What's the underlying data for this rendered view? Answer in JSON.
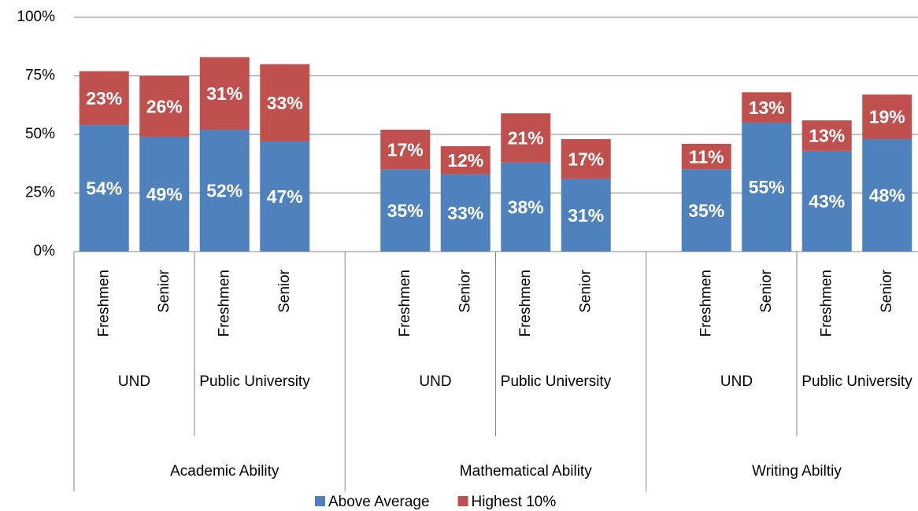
{
  "chart_data": {
    "type": "bar",
    "stacked": true,
    "groups": [
      {
        "name": "Academic Ability",
        "subgroups": [
          {
            "name": "UND",
            "categories": [
              "Freshmen",
              "Senior"
            ]
          },
          {
            "name": "Public University",
            "categories": [
              "Freshmen",
              "Senior"
            ]
          }
        ]
      },
      {
        "name": "Mathematical Ability",
        "subgroups": [
          {
            "name": "UND",
            "categories": [
              "Freshmen",
              "Senior"
            ]
          },
          {
            "name": "Public University",
            "categories": [
              "Freshmen",
              "Senior"
            ]
          }
        ]
      },
      {
        "name": "Writing Abiltiy",
        "subgroups": [
          {
            "name": "UND",
            "categories": [
              "Freshmen",
              "Senior"
            ]
          },
          {
            "name": "Public University",
            "categories": [
              "Freshmen",
              "Senior"
            ]
          }
        ]
      }
    ],
    "series": [
      {
        "name": "Above Average",
        "color": "#4f81bd",
        "values": [
          54,
          49,
          52,
          47,
          35,
          33,
          38,
          31,
          35,
          55,
          43,
          48
        ],
        "value_labels": [
          "54%",
          "49%",
          "52%",
          "47%",
          "35%",
          "33%",
          "38%",
          "31%",
          "35%",
          "55%",
          "43%",
          "48%"
        ]
      },
      {
        "name": "Highest 10%",
        "color": "#c0504d",
        "values": [
          23,
          26,
          31,
          33,
          17,
          12,
          21,
          17,
          11,
          13,
          13,
          19
        ],
        "value_labels": [
          "23%",
          "26%",
          "31%",
          "33%",
          "17%",
          "12%",
          "21%",
          "17%",
          "11%",
          "13%",
          "13%",
          "19%"
        ]
      }
    ],
    "ylim": [
      0,
      100
    ],
    "yticks": [
      {
        "value": 0,
        "label": "0%"
      },
      {
        "value": 25,
        "label": "25%"
      },
      {
        "value": 50,
        "label": "50%"
      },
      {
        "value": 75,
        "label": "75%"
      },
      {
        "value": 100,
        "label": "100%"
      }
    ],
    "grid": true,
    "legend": "bottom"
  }
}
